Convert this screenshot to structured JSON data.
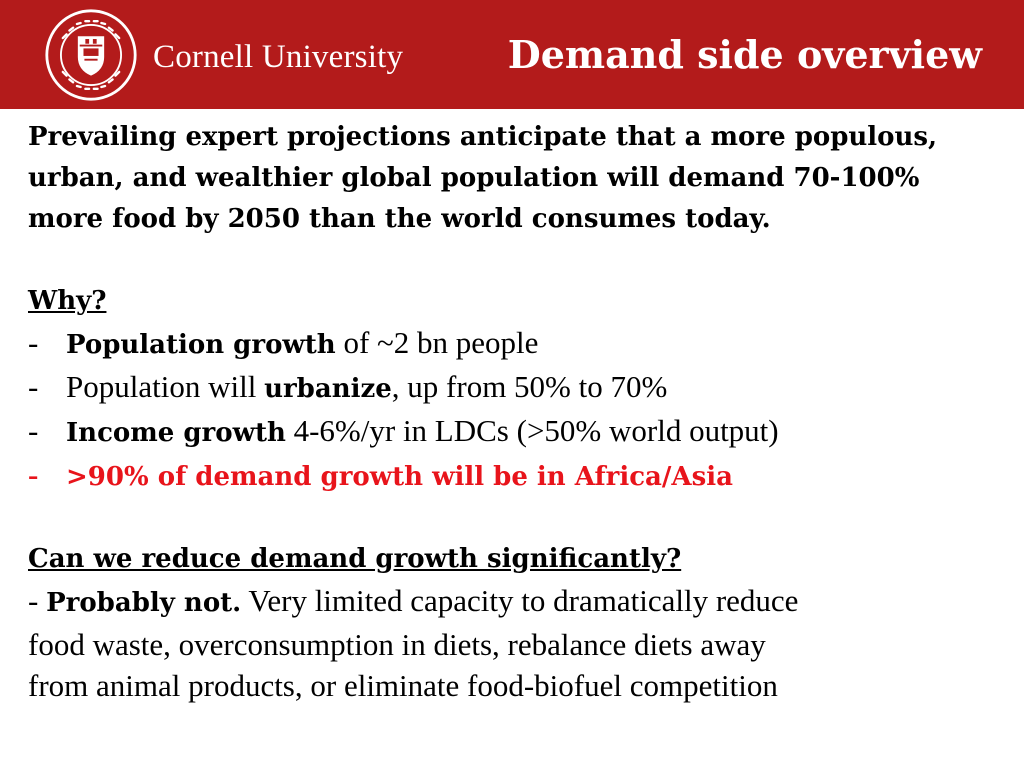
{
  "header": {
    "brand_name": "Cornell University",
    "seal_text": "CORNELL UNIVERSITY · FOUNDED A.D. 1865",
    "title": "Demand side overview",
    "background_color": "#b31b1b"
  },
  "intro": {
    "text": "Prevailing expert projections anticipate that a more populous, urban, and wealthier global population will demand 70-100% more food by 2050 than the world consumes today."
  },
  "why": {
    "heading": "Why?",
    "items": [
      {
        "dash": "-",
        "bold": "Population growth",
        "rest": " of ~2 bn people"
      },
      {
        "dash": "-",
        "pre": "Population will ",
        "bold": "urbanize",
        "rest": ", up from 50% to 70%"
      },
      {
        "dash": "-",
        "bold": "Income growth",
        "rest": " 4-6%/yr in LDCs (>50% world output)"
      },
      {
        "dash": "-",
        "text": ">90% of demand growth will be in Africa/Asia",
        "color": "#e8141b"
      }
    ]
  },
  "reduce": {
    "heading": "Can we reduce demand growth significantly?",
    "dash": "- ",
    "bold": "Probably not.",
    "line1_rest": " Very limited capacity to dramatically reduce",
    "line2": "food waste, overconsumption in diets, rebalance diets away",
    "line3": "from animal products, or eliminate food-biofuel competition"
  }
}
